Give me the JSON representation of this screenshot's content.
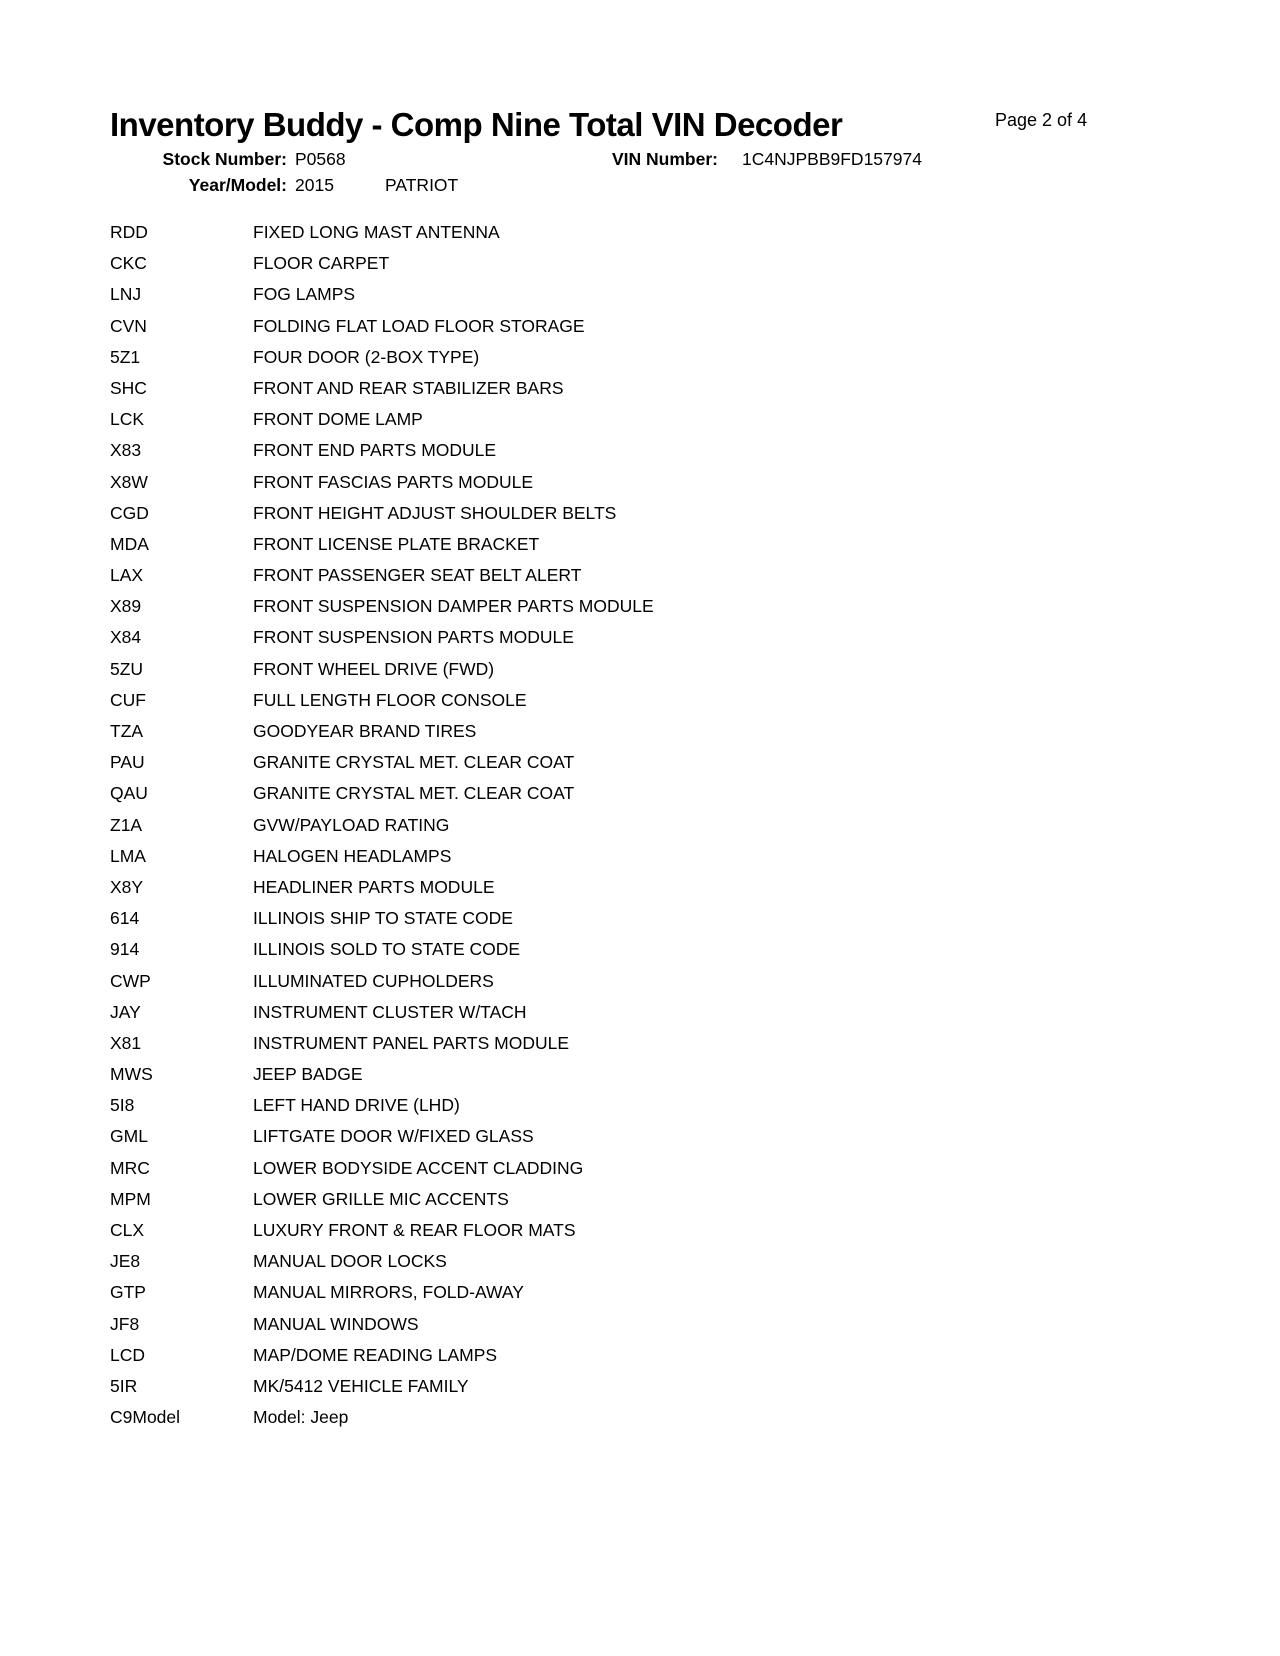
{
  "page": {
    "page_label": "Page 2 of 4"
  },
  "header": {
    "title": "Inventory Buddy - Comp Nine Total VIN Decoder",
    "stock_number_label": "Stock Number:",
    "stock_number": "P0568",
    "vin_number_label": "VIN Number:",
    "vin_number": "1C4NJPBB9FD157974",
    "year_model_label": "Year/Model:",
    "year": "2015",
    "model": "PATRIOT"
  },
  "options": [
    {
      "code": "RDD",
      "description": "FIXED LONG MAST ANTENNA"
    },
    {
      "code": "CKC",
      "description": "FLOOR CARPET"
    },
    {
      "code": "LNJ",
      "description": "FOG LAMPS"
    },
    {
      "code": "CVN",
      "description": "FOLDING FLAT LOAD FLOOR STORAGE"
    },
    {
      "code": "5Z1",
      "description": "FOUR DOOR (2-BOX TYPE)"
    },
    {
      "code": "SHC",
      "description": "FRONT AND REAR STABILIZER BARS"
    },
    {
      "code": "LCK",
      "description": "FRONT DOME LAMP"
    },
    {
      "code": "X83",
      "description": "FRONT END PARTS MODULE"
    },
    {
      "code": "X8W",
      "description": "FRONT FASCIAS PARTS MODULE"
    },
    {
      "code": "CGD",
      "description": "FRONT HEIGHT ADJUST SHOULDER BELTS"
    },
    {
      "code": "MDA",
      "description": "FRONT LICENSE PLATE BRACKET"
    },
    {
      "code": "LAX",
      "description": "FRONT PASSENGER SEAT BELT ALERT"
    },
    {
      "code": "X89",
      "description": "FRONT SUSPENSION DAMPER PARTS MODULE"
    },
    {
      "code": "X84",
      "description": "FRONT SUSPENSION PARTS MODULE"
    },
    {
      "code": "5ZU",
      "description": "FRONT WHEEL DRIVE (FWD)"
    },
    {
      "code": "CUF",
      "description": "FULL LENGTH FLOOR CONSOLE"
    },
    {
      "code": "TZA",
      "description": "GOODYEAR BRAND TIRES"
    },
    {
      "code": "PAU",
      "description": "GRANITE CRYSTAL MET. CLEAR COAT"
    },
    {
      "code": "QAU",
      "description": "GRANITE CRYSTAL MET. CLEAR COAT"
    },
    {
      "code": "Z1A",
      "description": "GVW/PAYLOAD RATING"
    },
    {
      "code": "LMA",
      "description": "HALOGEN HEADLAMPS"
    },
    {
      "code": "X8Y",
      "description": "HEADLINER PARTS MODULE"
    },
    {
      "code": "614",
      "description": "ILLINOIS SHIP TO STATE CODE"
    },
    {
      "code": "914",
      "description": "ILLINOIS SOLD TO STATE CODE"
    },
    {
      "code": "CWP",
      "description": "ILLUMINATED CUPHOLDERS"
    },
    {
      "code": "JAY",
      "description": "INSTRUMENT CLUSTER W/TACH"
    },
    {
      "code": "X81",
      "description": "INSTRUMENT PANEL PARTS MODULE"
    },
    {
      "code": "MWS",
      "description": "JEEP BADGE"
    },
    {
      "code": "5I8",
      "description": "LEFT HAND DRIVE (LHD)"
    },
    {
      "code": "GML",
      "description": "LIFTGATE DOOR W/FIXED GLASS"
    },
    {
      "code": "MRC",
      "description": "LOWER BODYSIDE ACCENT CLADDING"
    },
    {
      "code": "MPM",
      "description": "LOWER GRILLE MIC ACCENTS"
    },
    {
      "code": "CLX",
      "description": "LUXURY FRONT & REAR FLOOR MATS"
    },
    {
      "code": "JE8",
      "description": "MANUAL DOOR LOCKS"
    },
    {
      "code": "GTP",
      "description": "MANUAL MIRRORS, FOLD-AWAY"
    },
    {
      "code": "JF8",
      "description": "MANUAL WINDOWS"
    },
    {
      "code": "LCD",
      "description": "MAP/DOME READING LAMPS"
    },
    {
      "code": "5IR",
      "description": "MK/5412 VEHICLE FAMILY"
    },
    {
      "code": "C9Model",
      "description": "Model: Jeep"
    }
  ]
}
